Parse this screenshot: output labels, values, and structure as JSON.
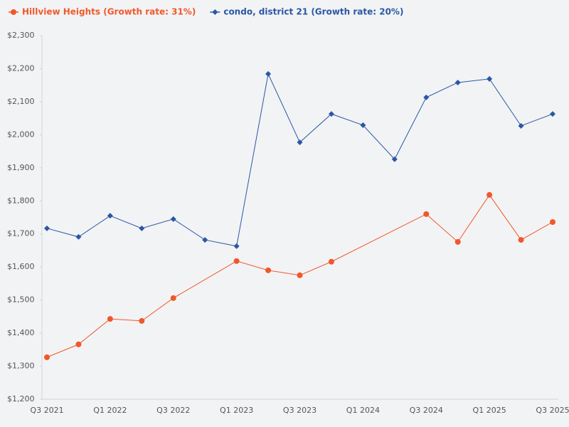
{
  "chart_data": {
    "type": "line",
    "categories": [
      "Q3 2021",
      null,
      "Q1 2022",
      null,
      "Q3 2022",
      null,
      "Q1 2023",
      null,
      "Q3 2023",
      null,
      "Q1 2024",
      null,
      "Q3 2024",
      null,
      "Q1 2025",
      null,
      "Q3 2025"
    ],
    "series": [
      {
        "name": "Hillview Heights (Growth rate: 31%)",
        "color": "#f0582a",
        "values": [
          1327,
          1366,
          1443,
          1437,
          1506,
          null,
          1618,
          1590,
          1575,
          1616,
          null,
          null,
          1760,
          1676,
          1818,
          1682,
          1736
        ]
      },
      {
        "name": "condo, district 21 (Growth rate: 20%)",
        "color": "#2a57a3",
        "values": [
          1717,
          1691,
          1755,
          1717,
          1745,
          1682,
          1663,
          2184,
          1977,
          2063,
          2029,
          1926,
          2113,
          2158,
          2169,
          2027,
          2063
        ]
      }
    ],
    "ylim": [
      1200,
      2300
    ],
    "yticks": [
      {
        "value": 1200,
        "label": "$1,200"
      },
      {
        "value": 1300,
        "label": "$1,300"
      },
      {
        "value": 1400,
        "label": "$1,400"
      },
      {
        "value": 1500,
        "label": "$1,500"
      },
      {
        "value": 1600,
        "label": "$1,600"
      },
      {
        "value": 1700,
        "label": "$1,700"
      },
      {
        "value": 1800,
        "label": "$1,800"
      },
      {
        "value": 1900,
        "label": "$1,900"
      },
      {
        "value": 2000,
        "label": "$2,000"
      },
      {
        "value": 2100,
        "label": "$2,100"
      },
      {
        "value": 2200,
        "label": "$2,200"
      },
      {
        "value": 2300,
        "label": "$2,300"
      }
    ],
    "legend": "top-left"
  }
}
